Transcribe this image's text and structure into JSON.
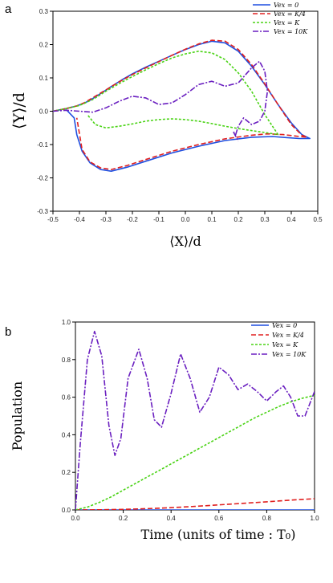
{
  "chart_data": [
    {
      "type": "line",
      "panel_label": "a",
      "xlabel": "⟨X⟩/d",
      "ylabel": "⟨Y⟩/d",
      "xlim": [
        -0.5,
        0.5
      ],
      "ylim": [
        -0.3,
        0.3
      ],
      "xticks": [
        -0.5,
        -0.4,
        -0.3,
        -0.2,
        -0.1,
        0,
        0.1,
        0.2,
        0.3,
        0.4,
        0.5
      ],
      "xtick_labels": [
        "-0.5",
        "-0.4",
        "-0.3",
        "-0.2",
        "-0.1",
        "0.0",
        "0.1",
        "0.2",
        "0.3",
        "0.4",
        "0.5"
      ],
      "yticks": [
        -0.3,
        -0.2,
        -0.1,
        0,
        0.1,
        0.2,
        0.3
      ],
      "ytick_labels": [
        "-0.3",
        "-0.2",
        "-0.1",
        "0.0",
        "0.1",
        "0.2",
        "0.3"
      ],
      "grid": false,
      "legend": "top-right",
      "series": [
        {
          "name": "Vex = 0",
          "color": "#1f4fe0",
          "dash": "solid",
          "x": [
            -0.5,
            -0.45,
            -0.41,
            -0.38,
            -0.36,
            -0.34,
            -0.31,
            -0.28,
            -0.24,
            -0.2,
            -0.15,
            -0.1,
            -0.05,
            0.0,
            0.05,
            0.1,
            0.15,
            0.2,
            0.25,
            0.3,
            0.35,
            0.4,
            0.44,
            0.47,
            0.43,
            0.38,
            0.33,
            0.25,
            0.15,
            0.05,
            -0.05,
            -0.15,
            -0.22,
            -0.28,
            -0.32,
            -0.36,
            -0.39,
            -0.41,
            -0.42,
            -0.45
          ],
          "y": [
            0.0,
            0.008,
            0.016,
            0.025,
            0.033,
            0.043,
            0.058,
            0.074,
            0.094,
            0.112,
            0.132,
            0.15,
            0.168,
            0.185,
            0.2,
            0.21,
            0.205,
            0.18,
            0.135,
            0.08,
            0.02,
            -0.035,
            -0.07,
            -0.082,
            -0.082,
            -0.079,
            -0.076,
            -0.078,
            -0.088,
            -0.105,
            -0.125,
            -0.15,
            -0.168,
            -0.18,
            -0.175,
            -0.155,
            -0.12,
            -0.07,
            -0.02,
            0.005
          ]
        },
        {
          "name": "Vex = K/4",
          "color": "#e02020",
          "dash": "6,3",
          "x": [
            -0.5,
            -0.45,
            -0.41,
            -0.38,
            -0.34,
            -0.3,
            -0.25,
            -0.2,
            -0.15,
            -0.1,
            -0.05,
            0.0,
            0.05,
            0.1,
            0.15,
            0.2,
            0.25,
            0.3,
            0.35,
            0.4,
            0.44,
            0.46,
            0.42,
            0.37,
            0.31,
            0.25,
            0.15,
            0.05,
            -0.05,
            -0.15,
            -0.22,
            -0.28,
            -0.32,
            -0.36,
            -0.39,
            -0.41
          ],
          "y": [
            0.0,
            0.008,
            0.016,
            0.026,
            0.045,
            0.064,
            0.088,
            0.11,
            0.13,
            0.149,
            0.168,
            0.186,
            0.202,
            0.213,
            0.21,
            0.185,
            0.14,
            0.082,
            0.02,
            -0.04,
            -0.072,
            -0.078,
            -0.075,
            -0.07,
            -0.068,
            -0.072,
            -0.083,
            -0.1,
            -0.12,
            -0.145,
            -0.163,
            -0.175,
            -0.17,
            -0.152,
            -0.115,
            -0.02
          ]
        },
        {
          "name": "Vex = K",
          "color": "#4ad315",
          "dash": "3,2",
          "x": [
            -0.5,
            -0.45,
            -0.4,
            -0.35,
            -0.3,
            -0.25,
            -0.2,
            -0.15,
            -0.1,
            -0.05,
            0.0,
            0.05,
            0.1,
            0.15,
            0.2,
            0.25,
            0.3,
            0.35,
            0.31,
            0.25,
            0.2,
            0.15,
            0.1,
            0.05,
            0.0,
            -0.05,
            -0.1,
            -0.15,
            -0.2,
            -0.25,
            -0.3,
            -0.34,
            -0.37
          ],
          "y": [
            0.0,
            0.008,
            0.017,
            0.035,
            0.06,
            0.083,
            0.104,
            0.124,
            0.143,
            0.16,
            0.172,
            0.18,
            0.175,
            0.155,
            0.115,
            0.06,
            -0.01,
            -0.07,
            -0.065,
            -0.058,
            -0.052,
            -0.045,
            -0.037,
            -0.03,
            -0.025,
            -0.023,
            -0.025,
            -0.03,
            -0.038,
            -0.045,
            -0.05,
            -0.04,
            -0.01
          ]
        },
        {
          "name": "Vex = 10K",
          "color": "#6a1fc0",
          "dash": "7,2,2,2",
          "x": [
            -0.5,
            -0.45,
            -0.4,
            -0.35,
            -0.3,
            -0.25,
            -0.2,
            -0.15,
            -0.1,
            -0.05,
            0.0,
            0.05,
            0.1,
            0.15,
            0.2,
            0.25,
            0.28,
            0.3,
            0.31,
            0.3,
            0.28,
            0.25,
            0.22,
            0.2,
            0.19,
            0.18,
            0.2
          ],
          "y": [
            0.0,
            0.003,
            0.0,
            -0.003,
            0.01,
            0.03,
            0.045,
            0.04,
            0.02,
            0.025,
            0.05,
            0.08,
            0.09,
            0.075,
            0.085,
            0.13,
            0.15,
            0.12,
            0.06,
            0.0,
            -0.03,
            -0.04,
            -0.02,
            -0.045,
            -0.07,
            -0.06,
            -0.09
          ]
        }
      ]
    },
    {
      "type": "line",
      "panel_label": "b",
      "xlabel": "Time (units of time : T₀)",
      "ylabel": "Population",
      "xlim": [
        0.0,
        1.0
      ],
      "ylim": [
        0.0,
        1.0
      ],
      "xticks": [
        0.0,
        0.2,
        0.4,
        0.6,
        0.8,
        1.0
      ],
      "xtick_labels": [
        "0.0",
        "0.2",
        "0.4",
        "0.6",
        "0.8",
        "1.0"
      ],
      "yticks": [
        0.0,
        0.2,
        0.4,
        0.6,
        0.8,
        1.0
      ],
      "ytick_labels": [
        "0.0",
        "0.2",
        "0.4",
        "0.6",
        "0.8",
        "1.0"
      ],
      "grid": false,
      "legend": "top-right",
      "series": [
        {
          "name": "Vex = 0",
          "color": "#1f4fe0",
          "dash": "solid",
          "x": [
            0.0,
            1.0
          ],
          "y": [
            0.0,
            0.0
          ]
        },
        {
          "name": "Vex = K/4",
          "color": "#e02020",
          "dash": "6,3",
          "x": [
            0.0,
            0.1,
            0.2,
            0.3,
            0.4,
            0.5,
            0.6,
            0.7,
            0.8,
            0.9,
            1.0
          ],
          "y": [
            0.0,
            0.001,
            0.003,
            0.007,
            0.012,
            0.019,
            0.027,
            0.035,
            0.043,
            0.052,
            0.06
          ]
        },
        {
          "name": "Vex = K",
          "color": "#4ad315",
          "dash": "3,2",
          "x": [
            0.0,
            0.05,
            0.1,
            0.15,
            0.2,
            0.25,
            0.3,
            0.35,
            0.4,
            0.45,
            0.5,
            0.55,
            0.6,
            0.65,
            0.7,
            0.75,
            0.8,
            0.85,
            0.9,
            0.95,
            1.0
          ],
          "y": [
            0.0,
            0.015,
            0.04,
            0.07,
            0.105,
            0.14,
            0.175,
            0.21,
            0.245,
            0.28,
            0.315,
            0.35,
            0.385,
            0.42,
            0.455,
            0.49,
            0.52,
            0.55,
            0.575,
            0.595,
            0.61
          ]
        },
        {
          "name": "Vex = 10K",
          "color": "#6a1fc0",
          "dash": "7,2,2,2",
          "x": [
            0.0,
            0.02,
            0.05,
            0.08,
            0.11,
            0.14,
            0.165,
            0.19,
            0.22,
            0.265,
            0.3,
            0.33,
            0.36,
            0.4,
            0.44,
            0.48,
            0.52,
            0.56,
            0.6,
            0.64,
            0.68,
            0.72,
            0.76,
            0.8,
            0.84,
            0.87,
            0.9,
            0.93,
            0.96,
            1.0
          ],
          "y": [
            0.0,
            0.35,
            0.8,
            0.95,
            0.82,
            0.45,
            0.29,
            0.38,
            0.7,
            0.855,
            0.7,
            0.48,
            0.44,
            0.62,
            0.83,
            0.7,
            0.52,
            0.6,
            0.76,
            0.72,
            0.64,
            0.67,
            0.63,
            0.58,
            0.63,
            0.66,
            0.6,
            0.5,
            0.5,
            0.63
          ]
        }
      ]
    }
  ]
}
